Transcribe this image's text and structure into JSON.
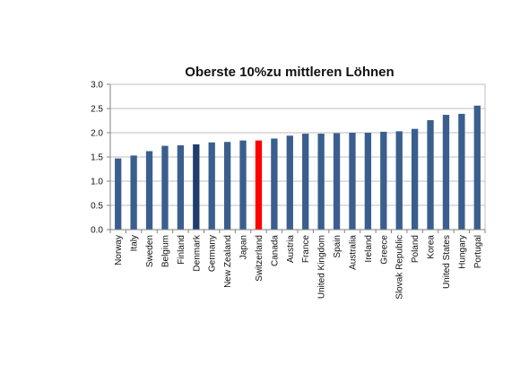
{
  "chart_data": {
    "type": "bar",
    "title": "Oberste 10%zu mittleren Löhnen",
    "xlabel": "",
    "ylabel": "",
    "ylim": [
      0,
      3.0
    ],
    "yticks": [
      "0.0",
      "0.5",
      "1.0",
      "1.5",
      "2.0",
      "2.5",
      "3.0"
    ],
    "grid": true,
    "legend": "none",
    "colors": {
      "default": "#3A5F8E",
      "dark": "#1F3E6C",
      "highlight": "#FF0000",
      "grid": "#BFBFBF"
    },
    "categories": [
      "Norway",
      "Italy",
      "Sweden",
      "Belgium",
      "Finland",
      "Denmark",
      "Germany",
      "New Zealand",
      "Japan",
      "Switzerland",
      "Canada",
      "Austria",
      "France",
      "United Kingdom",
      "Spain",
      "Australia",
      "Ireland",
      "Greece",
      "Slovak Republic",
      "Poland",
      "Korea",
      "United States",
      "Hungary",
      "Portugal"
    ],
    "values": [
      1.47,
      1.53,
      1.62,
      1.73,
      1.74,
      1.76,
      1.8,
      1.81,
      1.84,
      1.84,
      1.88,
      1.94,
      1.98,
      1.98,
      1.99,
      2.0,
      2.0,
      2.02,
      2.03,
      2.08,
      2.26,
      2.37,
      2.39,
      2.56
    ],
    "bar_colors": [
      "default",
      "default",
      "default",
      "default",
      "default",
      "dark",
      "default",
      "default",
      "default",
      "highlight",
      "default",
      "default",
      "default",
      "default",
      "default",
      "default",
      "default",
      "default",
      "default",
      "default",
      "default",
      "default",
      "default",
      "default"
    ]
  }
}
